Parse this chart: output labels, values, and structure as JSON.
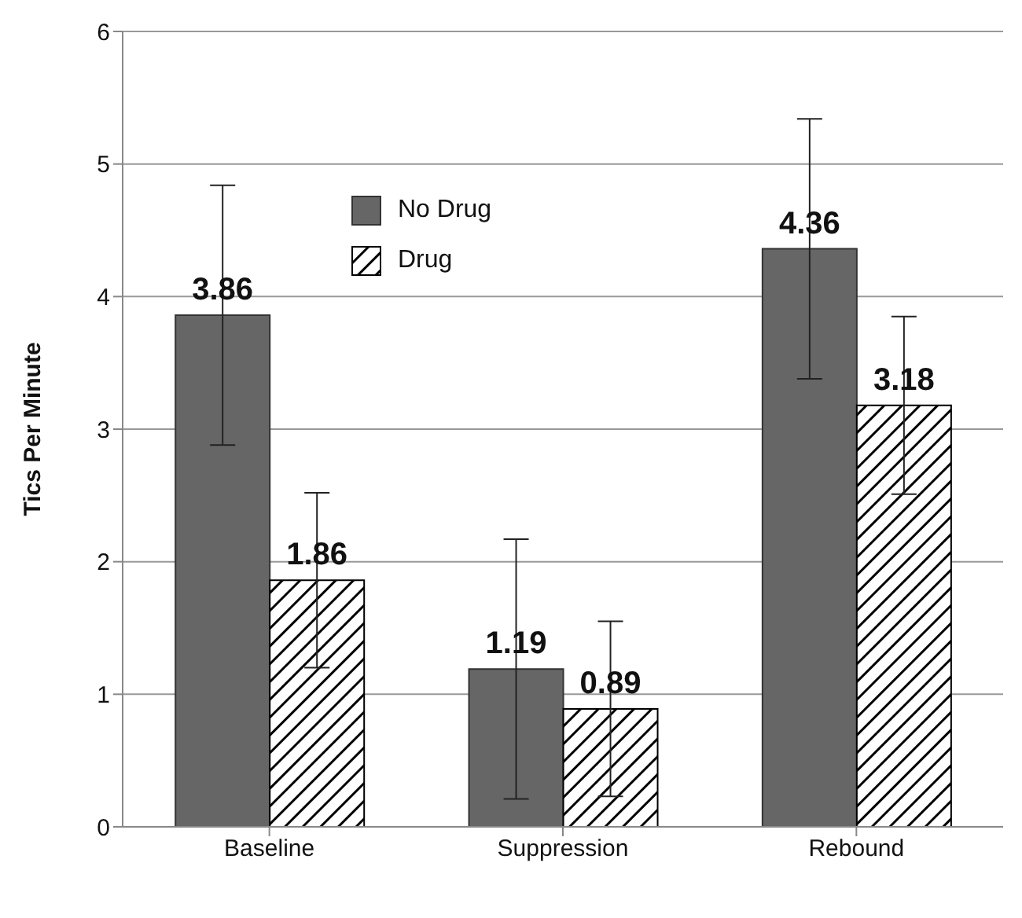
{
  "chart_data": {
    "type": "bar",
    "ylabel": "Tics Per Minute",
    "categories": [
      "Baseline",
      "Suppression",
      "Rebound"
    ],
    "series": [
      {
        "name": "No Drug",
        "color": "#666666",
        "values": [
          3.86,
          1.19,
          4.36
        ],
        "errors": [
          0.98,
          0.98,
          0.98
        ]
      },
      {
        "name": "Drug",
        "color": "#000000",
        "values": [
          1.86,
          0.89,
          3.18
        ],
        "errors": [
          0.66,
          0.66,
          0.67
        ]
      }
    ],
    "ylim": [
      0,
      6
    ],
    "yticks": [
      0,
      1,
      2,
      3,
      4,
      5,
      6
    ],
    "grid": "y",
    "legend": "top",
    "data_labels": true
  }
}
